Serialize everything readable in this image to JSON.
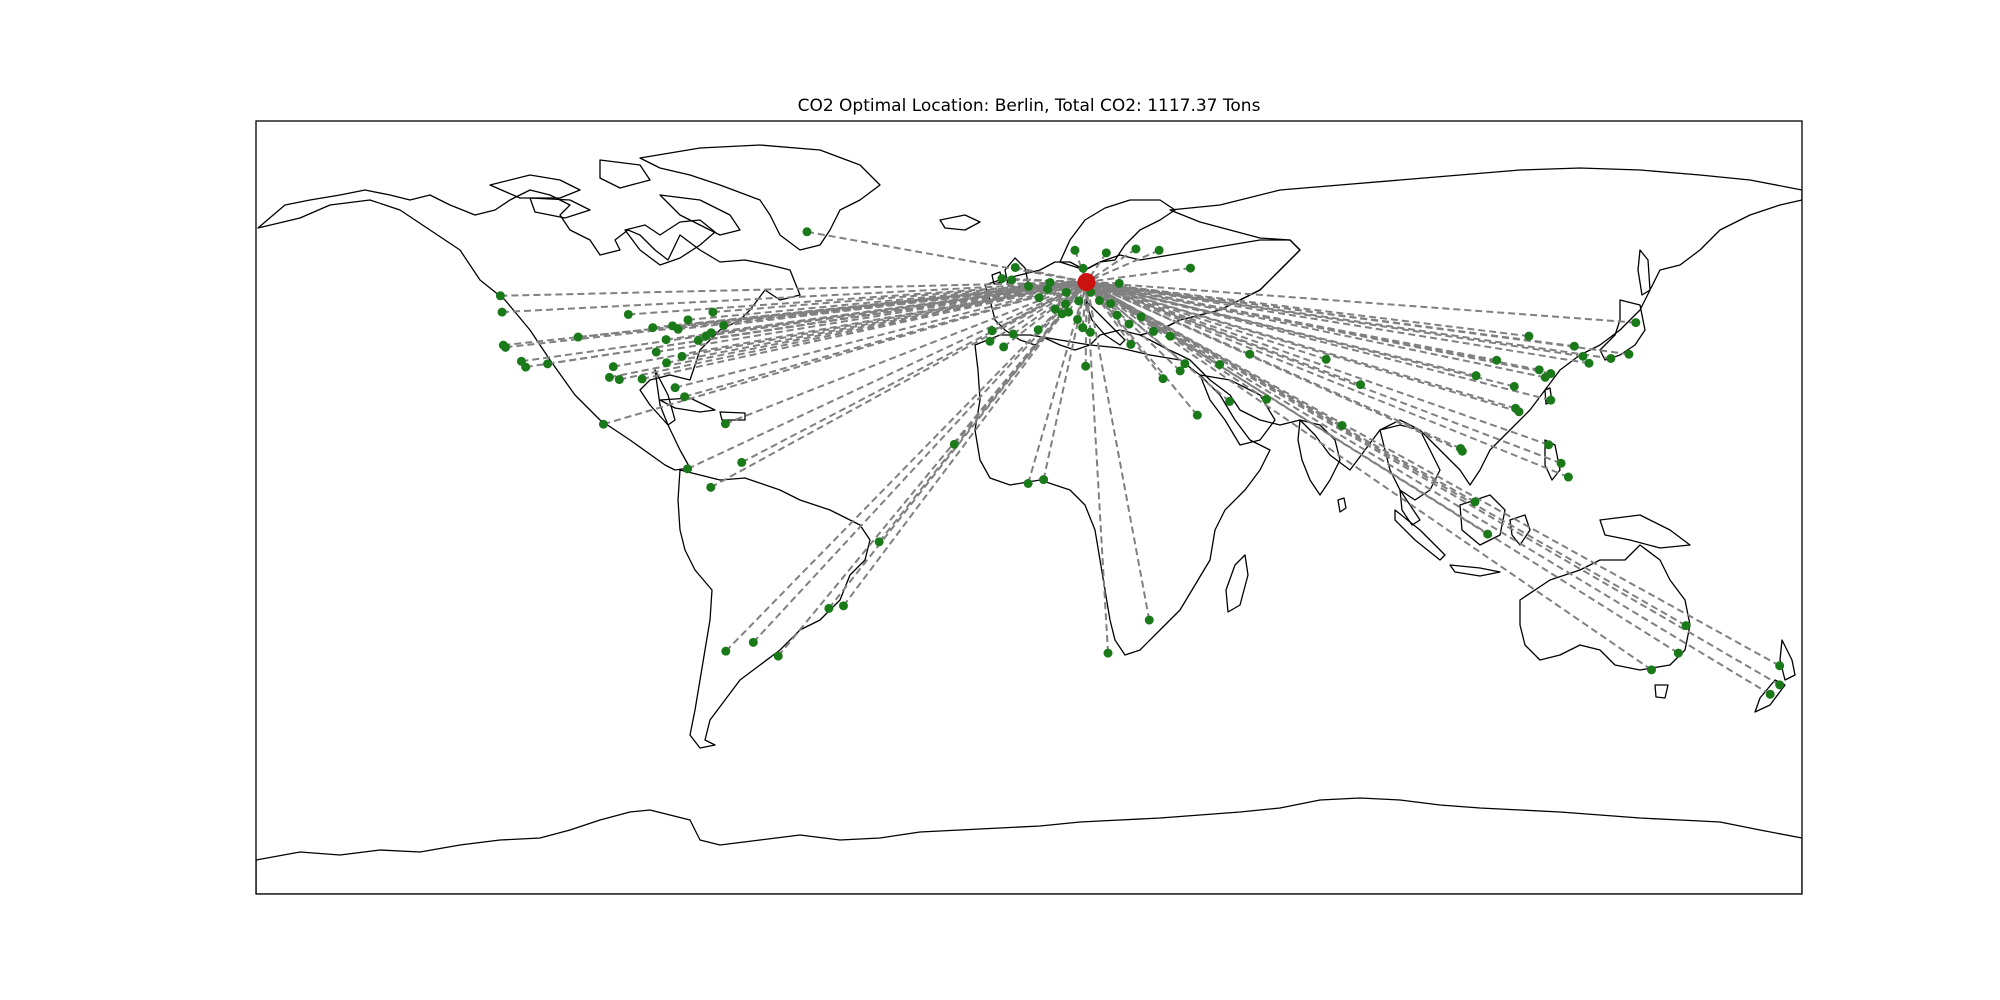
{
  "title": "CO2 Optimal Location: Berlin, Total CO2: 1117.37 Tons",
  "map": {
    "projection": "plate-carree",
    "extent": {
      "lon": [
        -180,
        180
      ],
      "lat": [
        -90,
        90
      ]
    },
    "line_style": "dashed",
    "colors": {
      "route": "#808080",
      "city": "#1a7a1a",
      "optimal": "#cc1111",
      "coast": "#000000",
      "frame": "#000000"
    }
  },
  "optimal": {
    "name": "Berlin",
    "lon": 13.4,
    "lat": 52.5
  },
  "total_co2": 1117.37,
  "cities": [
    [
      -51.7,
      64.2
    ],
    [
      -4.0,
      53.0
    ],
    [
      -3.2,
      55.9
    ],
    [
      -6.3,
      53.3
    ],
    [
      -0.1,
      51.5
    ],
    [
      2.35,
      48.85
    ],
    [
      4.9,
      52.4
    ],
    [
      4.35,
      50.85
    ],
    [
      8.7,
      50.1
    ],
    [
      11.6,
      48.1
    ],
    [
      16.4,
      48.2
    ],
    [
      14.4,
      50.1
    ],
    [
      19.0,
      47.5
    ],
    [
      21.0,
      52.2
    ],
    [
      12.6,
      55.7
    ],
    [
      18.0,
      59.3
    ],
    [
      10.7,
      59.9
    ],
    [
      24.9,
      60.2
    ],
    [
      30.3,
      59.9
    ],
    [
      37.6,
      55.75
    ],
    [
      6.1,
      46.2
    ],
    [
      8.5,
      47.4
    ],
    [
      9.2,
      45.5
    ],
    [
      12.5,
      41.9
    ],
    [
      14.3,
      40.8
    ],
    [
      7.7,
      45.1
    ],
    [
      11.3,
      43.8
    ],
    [
      2.15,
      41.4
    ],
    [
      -3.7,
      40.4
    ],
    [
      -9.1,
      38.7
    ],
    [
      -8.6,
      41.15
    ],
    [
      -5.9,
      37.4
    ],
    [
      23.7,
      37.98
    ],
    [
      29.0,
      41.0
    ],
    [
      32.9,
      39.9
    ],
    [
      26.1,
      44.4
    ],
    [
      23.3,
      42.7
    ],
    [
      20.5,
      44.8
    ],
    [
      12.5,
      41.9
    ],
    [
      13.2,
      32.9
    ],
    [
      31.2,
      30.0
    ],
    [
      35.2,
      31.8
    ],
    [
      36.3,
      33.5
    ],
    [
      51.4,
      35.7
    ],
    [
      46.7,
      24.7
    ],
    [
      55.3,
      25.2
    ],
    [
      39.2,
      21.5
    ],
    [
      44.4,
      33.3
    ],
    [
      69.2,
      34.5
    ],
    [
      72.9,
      19.1
    ],
    [
      77.2,
      28.6
    ],
    [
      100.5,
      13.75
    ],
    [
      100.9,
      13.1
    ],
    [
      103.85,
      1.3
    ],
    [
      106.8,
      -6.2
    ],
    [
      114.1,
      22.3
    ],
    [
      113.3,
      23.1
    ],
    [
      121.5,
      25.0
    ],
    [
      121.5,
      31.2
    ],
    [
      116.4,
      39.9
    ],
    [
      121.0,
      14.6
    ],
    [
      123.9,
      10.3
    ],
    [
      125.6,
      7.1
    ],
    [
      126.98,
      37.56
    ],
    [
      129.0,
      35.2
    ],
    [
      139.7,
      35.7
    ],
    [
      135.5,
      34.7
    ],
    [
      130.4,
      33.6
    ],
    [
      141.3,
      43.06
    ],
    [
      118.8,
      32.06
    ],
    [
      120.2,
      30.3
    ],
    [
      104.1,
      30.7
    ],
    [
      108.9,
      34.3
    ],
    [
      113.0,
      28.2
    ],
    [
      151.2,
      -33.9
    ],
    [
      144.96,
      -37.8
    ],
    [
      153.0,
      -27.5
    ],
    [
      174.8,
      -36.85
    ],
    [
      174.8,
      -41.3
    ],
    [
      172.6,
      -43.5
    ],
    [
      18.4,
      -33.9
    ],
    [
      28.0,
      -26.2
    ],
    [
      3.4,
      6.5
    ],
    [
      -0.2,
      5.6
    ],
    [
      -17.4,
      14.7
    ],
    [
      -34.9,
      -8.0
    ],
    [
      -46.6,
      -23.5
    ],
    [
      -43.2,
      -22.9
    ],
    [
      -58.4,
      -34.6
    ],
    [
      -70.6,
      -33.45
    ],
    [
      -64.2,
      -31.4
    ],
    [
      -74.1,
      4.7
    ],
    [
      -79.5,
      9.0
    ],
    [
      -66.9,
      10.5
    ],
    [
      -99.1,
      19.4
    ],
    [
      -70.7,
      19.5
    ],
    [
      -80.2,
      25.8
    ],
    [
      -82.4,
      27.9
    ],
    [
      -84.4,
      33.7
    ],
    [
      -90.1,
      29.95
    ],
    [
      -95.4,
      29.8
    ],
    [
      -96.8,
      32.8
    ],
    [
      -97.7,
      30.3
    ],
    [
      -104.99,
      39.7
    ],
    [
      -112.1,
      33.45
    ],
    [
      -117.2,
      32.7
    ],
    [
      -118.2,
      34.05
    ],
    [
      -122.4,
      37.8
    ],
    [
      -122.7,
      45.5
    ],
    [
      -123.1,
      49.3
    ],
    [
      -87.6,
      41.9
    ],
    [
      -93.3,
      44.95
    ],
    [
      -83.0,
      42.3
    ],
    [
      -79.4,
      43.7
    ],
    [
      -73.6,
      45.5
    ],
    [
      -71.1,
      42.4
    ],
    [
      -74.0,
      40.7
    ],
    [
      -75.2,
      39.95
    ],
    [
      -77.0,
      38.9
    ],
    [
      -80.8,
      35.2
    ],
    [
      -86.8,
      36.2
    ],
    [
      -81.7,
      41.5
    ],
    [
      -84.5,
      39.1
    ],
    [
      -121.9,
      37.3
    ]
  ]
}
